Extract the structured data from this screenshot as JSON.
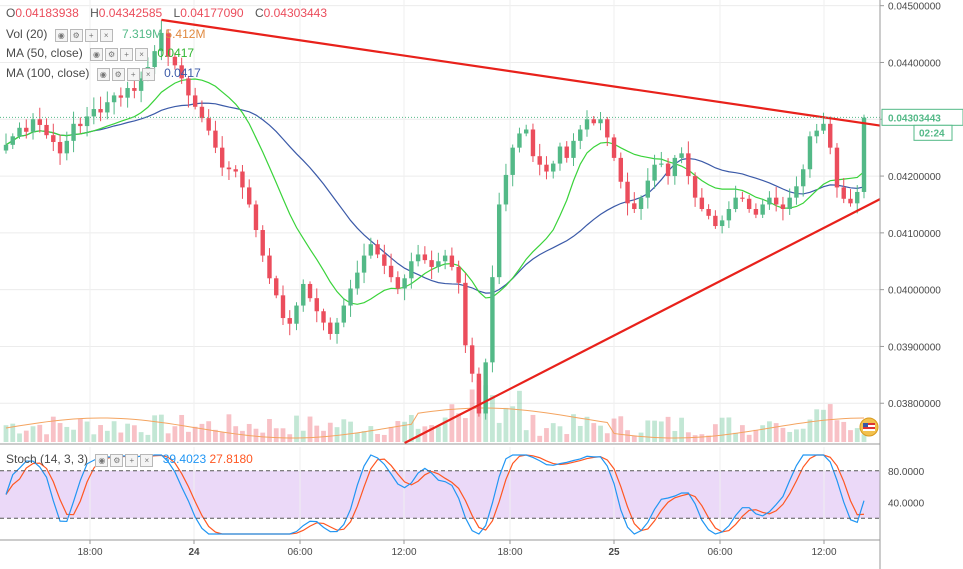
{
  "legend": {
    "open_label": "O",
    "open": "0.04183938",
    "high_label": "H",
    "high": "0.04342585",
    "low_label": "L",
    "low": "0.04177090",
    "close_label": "C",
    "close": "0.04303443",
    "vol_label": "Vol (20)",
    "vol_value1": "7.319M",
    "vol_value2": "5.412M",
    "ma50_label": "MA (50, close)",
    "ma50_value": "0.0417",
    "ma100_label": "MA (100, close)",
    "ma100_value": "0.0417",
    "stoch_label": "Stoch (14, 3, 3)",
    "stoch_k": "39.4023",
    "stoch_d": "27.8180"
  },
  "price_axis": {
    "ticks": [
      "0.04500000",
      "0.04400000",
      "0.04300000",
      "0.04200000",
      "0.04100000",
      "0.04000000",
      "0.03900000",
      "0.03800000"
    ],
    "current_price": "0.04303443",
    "countdown": "02:24"
  },
  "stoch_axis": {
    "ticks": [
      "80.0000",
      "40.0000"
    ]
  },
  "time_axis": {
    "ticks": [
      "18:00",
      "24",
      "06:00",
      "12:00",
      "18:00",
      "25",
      "06:00",
      "12:00"
    ]
  },
  "colors": {
    "up": "#53b987",
    "down": "#eb4d5c",
    "trendline": "#e8211b",
    "ma50": "#3ad33a",
    "ma100": "#3b5aa8",
    "vol_ma": "#f4a460",
    "stoch_k": "#2196f3",
    "stoch_d": "#ff5722",
    "stoch_bg": "#e7d2f7"
  },
  "chart_data": {
    "type": "candlestick",
    "price_range": [
      0.0373,
      0.0451
    ],
    "stoch_range": [
      0,
      100
    ],
    "stoch_bands": [
      80,
      20
    ],
    "trendlines": [
      {
        "name": "upper",
        "from": {
          "bar": 23,
          "price": 0.04475
        },
        "to": {
          "bar": 127,
          "price": 0.04293
        }
      },
      {
        "name": "lower",
        "from": {
          "bar": 59,
          "price": 0.0373
        },
        "to": {
          "bar": 127,
          "price": 0.04145
        }
      }
    ],
    "closes": [
      0.04255,
      0.0427,
      0.04285,
      0.04278,
      0.043,
      0.0429,
      0.04272,
      0.0426,
      0.0424,
      0.04262,
      0.04292,
      0.04288,
      0.04305,
      0.04318,
      0.04312,
      0.0433,
      0.04342,
      0.04338,
      0.04355,
      0.0435,
      0.04372,
      0.04392,
      0.0442,
      0.04452,
      0.0441,
      0.04395,
      0.04372,
      0.04342,
      0.04322,
      0.04302,
      0.0428,
      0.0425,
      0.04215,
      0.04212,
      0.04208,
      0.0418,
      0.0415,
      0.04105,
      0.0406,
      0.0402,
      0.0399,
      0.0395,
      0.0394,
      0.03972,
      0.0401,
      0.03985,
      0.03962,
      0.03942,
      0.03922,
      0.03942,
      0.03972,
      0.04002,
      0.0403,
      0.0406,
      0.0408,
      0.04062,
      0.04042,
      0.04022,
      0.04002,
      0.0402,
      0.0405,
      0.04062,
      0.04052,
      0.0404,
      0.0405,
      0.0406,
      0.0404,
      0.04012,
      0.03902,
      0.03852,
      0.03782,
      0.03872,
      0.04022,
      0.0415,
      0.04202,
      0.0425,
      0.04275,
      0.04282,
      0.04235,
      0.0422,
      0.04208,
      0.04222,
      0.04252,
      0.04232,
      0.04262,
      0.04282,
      0.043,
      0.04293,
      0.043,
      0.04268,
      0.04232,
      0.0419,
      0.04152,
      0.04142,
      0.04162,
      0.04192,
      0.0422,
      0.04222,
      0.042,
      0.04232,
      0.0424,
      0.042,
      0.04162,
      0.04142,
      0.0413,
      0.04112,
      0.04122,
      0.04142,
      0.04162,
      0.0416,
      0.04142,
      0.04132,
      0.0415,
      0.04162,
      0.0415,
      0.04142,
      0.04162,
      0.04182,
      0.04212,
      0.0427,
      0.0428,
      0.04292,
      0.0425,
      0.0418,
      0.0416,
      0.04152,
      0.04172,
      0.04303
    ],
    "volume_bars": 128
  }
}
